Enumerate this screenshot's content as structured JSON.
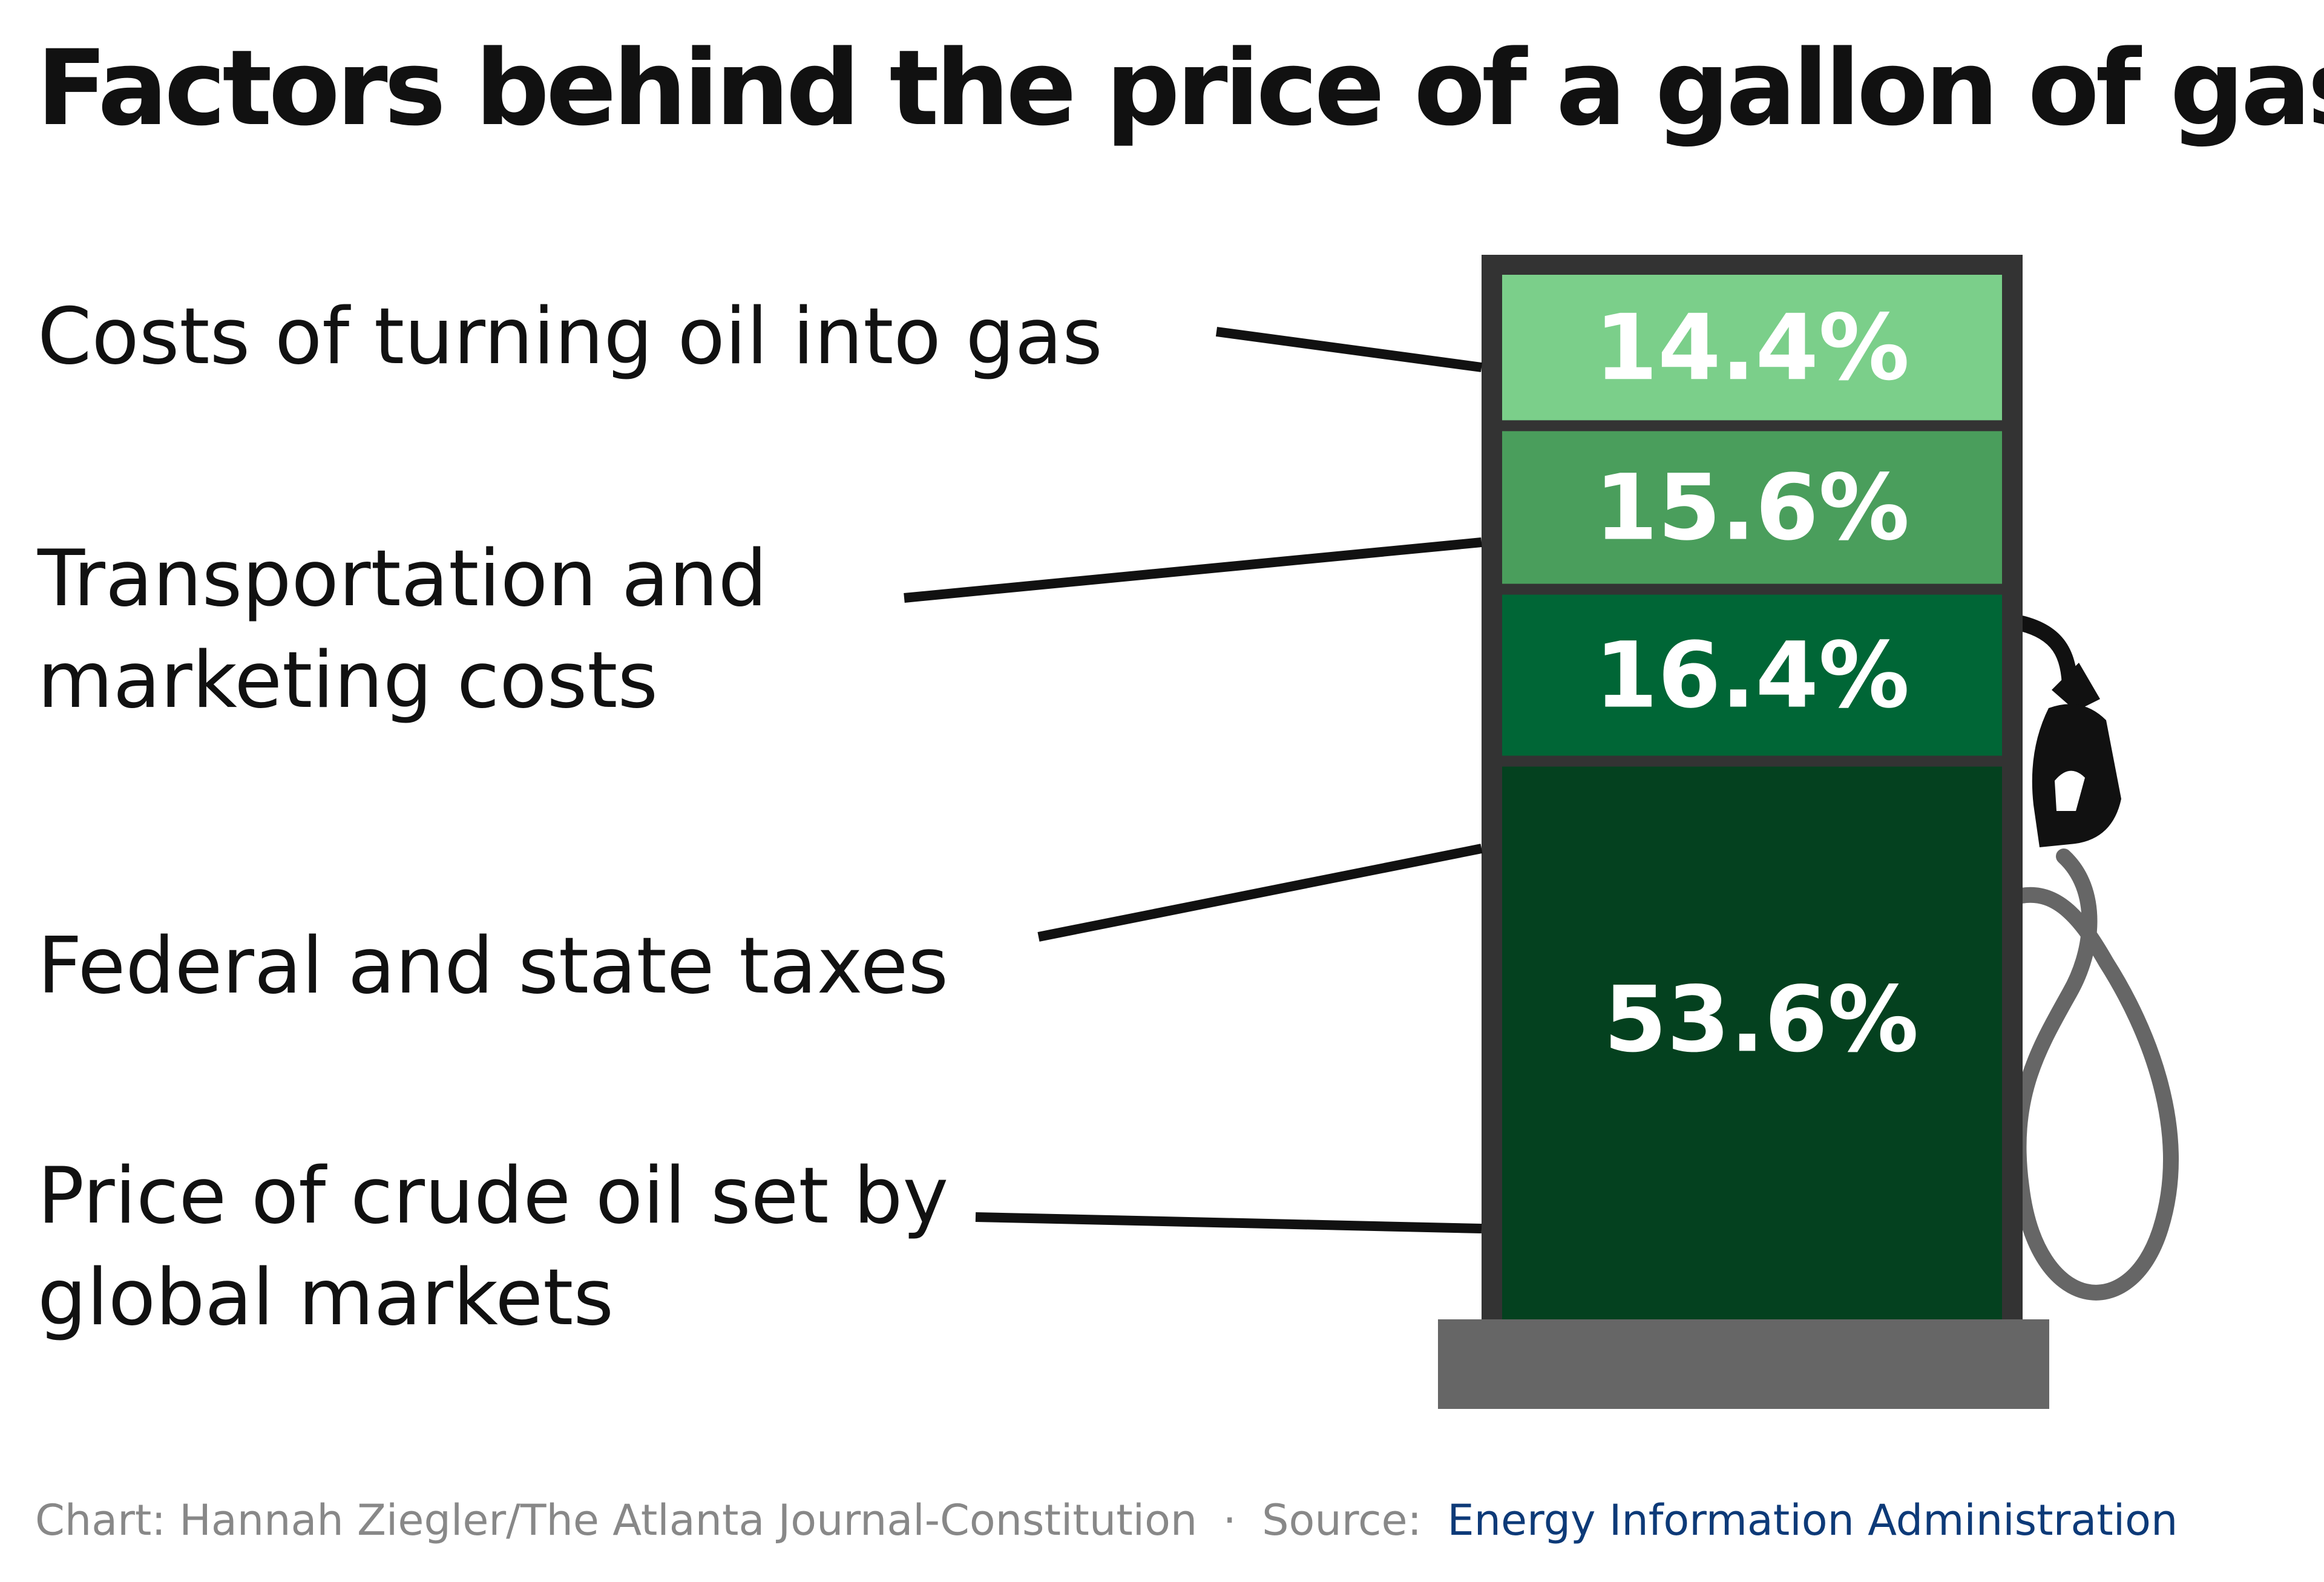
{
  "title": "Factors behind the price of a gallon of gas",
  "chart_data": {
    "type": "bar",
    "stacked": true,
    "title": "Factors behind the price of a gallon of gas",
    "unit": "%",
    "categories": [
      "Costs of turning oil into gas",
      "Transportation and marketing costs",
      "Federal and state taxes",
      "Price of crude oil set by global markets"
    ],
    "values": [
      14.4,
      15.6,
      16.4,
      53.6
    ],
    "value_labels": [
      "14.4%",
      "15.6%",
      "16.4%",
      "53.6%"
    ],
    "label_lines": [
      [
        "Costs of turning oil into gas"
      ],
      [
        "Transportation and",
        "marketing costs"
      ],
      [
        "Federal and state taxes"
      ],
      [
        "Price of crude oil set by",
        "global markets"
      ]
    ],
    "colors": [
      "#7bcf8a",
      "#4a9e5c",
      "#006636",
      "#04411f"
    ]
  },
  "footer": {
    "credit": "Chart: Hannah Ziegler/The Atlanta Journal-Constitution",
    "separator": "·",
    "source_prefix": "Source:",
    "source_name": "Energy Information Administration"
  },
  "colors": {
    "pump_frame": "#333333",
    "pump_base": "#666666",
    "hose": "#666666",
    "source_link": "#0d3a78",
    "footer_gray": "#888888"
  }
}
